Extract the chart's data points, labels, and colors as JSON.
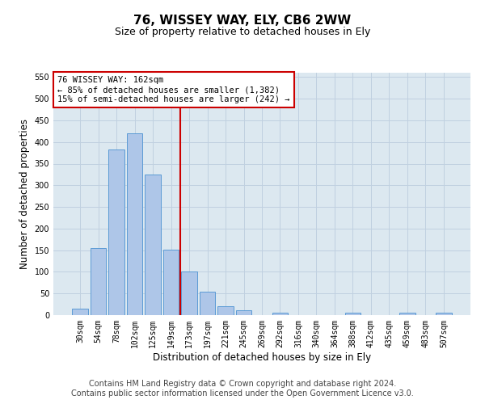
{
  "title": "76, WISSEY WAY, ELY, CB6 2WW",
  "subtitle": "Size of property relative to detached houses in Ely",
  "xlabel": "Distribution of detached houses by size in Ely",
  "ylabel": "Number of detached properties",
  "bar_labels": [
    "30sqm",
    "54sqm",
    "78sqm",
    "102sqm",
    "125sqm",
    "149sqm",
    "173sqm",
    "197sqm",
    "221sqm",
    "245sqm",
    "269sqm",
    "292sqm",
    "316sqm",
    "340sqm",
    "364sqm",
    "388sqm",
    "412sqm",
    "435sqm",
    "459sqm",
    "483sqm",
    "507sqm"
  ],
  "bar_values": [
    15,
    155,
    383,
    420,
    325,
    152,
    100,
    55,
    20,
    12,
    0,
    5,
    0,
    0,
    0,
    5,
    0,
    0,
    5,
    0,
    5
  ],
  "bar_color": "#aec6e8",
  "bar_edge_color": "#5b9bd5",
  "vline_x": 5.5,
  "vline_color": "#cc0000",
  "annotation_line1": "76 WISSEY WAY: 162sqm",
  "annotation_line2": "← 85% of detached houses are smaller (1,382)",
  "annotation_line3": "15% of semi-detached houses are larger (242) →",
  "annotation_box_color": "#cc0000",
  "ylim": [
    0,
    560
  ],
  "yticks": [
    0,
    50,
    100,
    150,
    200,
    250,
    300,
    350,
    400,
    450,
    500,
    550
  ],
  "grid_color": "#c0d0e0",
  "background_color": "#dce8f0",
  "footer_line1": "Contains HM Land Registry data © Crown copyright and database right 2024.",
  "footer_line2": "Contains public sector information licensed under the Open Government Licence v3.0.",
  "title_fontsize": 11,
  "subtitle_fontsize": 9,
  "axis_label_fontsize": 8.5,
  "tick_fontsize": 7,
  "annotation_fontsize": 7.5,
  "footer_fontsize": 7
}
